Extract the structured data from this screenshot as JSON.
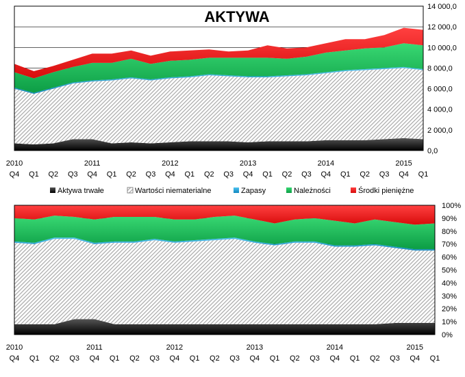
{
  "chart_data": [
    {
      "type": "area",
      "stacked": true,
      "title": "AKTYWA",
      "x": [
        "2010 Q4",
        "Q1",
        "Q2",
        "Q3",
        "Q4",
        "Q1",
        "Q2",
        "Q3",
        "Q4",
        "Q1",
        "Q2",
        "Q3",
        "Q4",
        "Q1",
        "Q2",
        "Q3",
        "Q4",
        "Q1",
        "Q2",
        "Q3",
        "Q4",
        "Q1"
      ],
      "x_tick_labels": [
        "Q4",
        "Q1",
        "Q2",
        "Q3",
        "Q4",
        "Q1",
        "Q2",
        "Q3",
        "Q4",
        "Q1",
        "Q2",
        "Q3",
        "Q4",
        "Q1",
        "Q2",
        "Q3",
        "Q4",
        "Q1",
        "Q2",
        "Q3",
        "Q4",
        "Q1"
      ],
      "year_labels": [
        {
          "label": "2010",
          "at": 0
        },
        {
          "label": "2011",
          "at": 4
        },
        {
          "label": "2012",
          "at": 8
        },
        {
          "label": "2013",
          "at": 12
        },
        {
          "label": "2014",
          "at": 16
        },
        {
          "label": "2015",
          "at": 20
        }
      ],
      "series": [
        {
          "name": "Aktywa trwałe",
          "color": "#111111",
          "values": [
            700,
            600,
            700,
            1100,
            1100,
            700,
            800,
            700,
            800,
            900,
            900,
            900,
            800,
            900,
            900,
            900,
            1000,
            1000,
            1000,
            1100,
            1200,
            1100
          ]
        },
        {
          "name": "Wartości niematerialne",
          "color": "#bdbdbd",
          "values": [
            5300,
            4900,
            5300,
            5400,
            5600,
            6100,
            6200,
            6100,
            6200,
            6200,
            6400,
            6300,
            6300,
            6200,
            6300,
            6400,
            6500,
            6700,
            6800,
            6800,
            6800,
            6700
          ]
        },
        {
          "name": "Zapasy",
          "color": "#1ba1d9",
          "values": [
            100,
            100,
            100,
            100,
            100,
            100,
            100,
            100,
            100,
            100,
            100,
            100,
            100,
            100,
            100,
            100,
            100,
            100,
            100,
            100,
            100,
            100
          ]
        },
        {
          "name": "Należności",
          "color": "#16c25a",
          "values": [
            1500,
            1400,
            1500,
            1500,
            1700,
            1600,
            1800,
            1500,
            1600,
            1600,
            1600,
            1700,
            1800,
            1800,
            1600,
            1700,
            1900,
            1900,
            2000,
            2000,
            2300,
            2300
          ]
        },
        {
          "name": "Środki pieniężne",
          "color": "#ee1c1c",
          "values": [
            800,
            700,
            600,
            700,
            900,
            900,
            800,
            800,
            900,
            900,
            800,
            600,
            700,
            1200,
            1000,
            900,
            900,
            1100,
            900,
            1200,
            1500,
            1500
          ]
        }
      ],
      "yticks": [
        "0,0",
        "2 000,0",
        "4 000,0",
        "6 000,0",
        "8 000,0",
        "10 000,0",
        "12 000,0",
        "14 000,0"
      ],
      "ylim": [
        0,
        14000
      ],
      "legend_position": "bottom",
      "grid": true
    },
    {
      "type": "area",
      "stacked": true,
      "percent": true,
      "title": "",
      "x": [
        "2010 Q4",
        "Q1",
        "Q2",
        "Q3",
        "Q4",
        "Q1",
        "Q2",
        "Q3",
        "Q4",
        "Q1",
        "Q2",
        "Q3",
        "Q4",
        "Q1",
        "Q2",
        "Q3",
        "Q4",
        "Q1",
        "Q2",
        "Q3",
        "Q4",
        "Q1"
      ],
      "x_tick_labels": [
        "Q4",
        "Q1",
        "Q2",
        "Q3",
        "Q4",
        "Q1",
        "Q2",
        "Q3",
        "Q4",
        "Q1",
        "Q2",
        "Q3",
        "Q4",
        "Q1",
        "Q2",
        "Q3",
        "Q4",
        "Q1",
        "Q2",
        "Q3",
        "Q4",
        "Q1"
      ],
      "year_labels": [
        {
          "label": "2010",
          "at": 0
        },
        {
          "label": "2011",
          "at": 4
        },
        {
          "label": "2012",
          "at": 8
        },
        {
          "label": "2013",
          "at": 12
        },
        {
          "label": "2014",
          "at": 16
        },
        {
          "label": "2015",
          "at": 20
        }
      ],
      "series": [
        {
          "name": "Aktywa trwałe",
          "color": "#111111",
          "values": [
            8,
            8,
            8,
            12,
            12,
            8,
            8,
            8,
            8,
            8,
            8,
            8,
            8,
            8,
            8,
            8,
            8,
            8,
            8,
            9,
            9,
            9
          ]
        },
        {
          "name": "Wartości niematerialne",
          "color": "#bdbdbd",
          "values": [
            63,
            62,
            66,
            62,
            58,
            63,
            63,
            65,
            63,
            64,
            65,
            66,
            63,
            61,
            63,
            63,
            60,
            60,
            61,
            58,
            56,
            56
          ]
        },
        {
          "name": "Zapasy",
          "color": "#1ba1d9",
          "values": [
            1,
            1,
            1,
            1,
            1,
            1,
            1,
            1,
            1,
            1,
            1,
            1,
            1,
            1,
            1,
            1,
            1,
            1,
            1,
            1,
            1,
            1
          ]
        },
        {
          "name": "Należności",
          "color": "#16c25a",
          "values": [
            18,
            18,
            17,
            16,
            18,
            19,
            19,
            17,
            17,
            16,
            17,
            17,
            17,
            16,
            17,
            18,
            19,
            17,
            19,
            19,
            19,
            20
          ]
        },
        {
          "name": "Środki pieniężne",
          "color": "#ee1c1c",
          "values": [
            10,
            11,
            8,
            9,
            11,
            9,
            9,
            9,
            11,
            11,
            9,
            8,
            11,
            14,
            11,
            10,
            12,
            14,
            11,
            13,
            15,
            14
          ]
        }
      ],
      "yticks": [
        "0%",
        "10%",
        "20%",
        "30%",
        "40%",
        "50%",
        "60%",
        "70%",
        "80%",
        "90%",
        "100%"
      ],
      "ylim": [
        0,
        100
      ],
      "grid": true
    }
  ],
  "legend": {
    "items": [
      {
        "name": "Aktywa trwałe",
        "icon": "black-square-icon"
      },
      {
        "name": "Wartości niematerialne",
        "icon": "hatched-square-icon"
      },
      {
        "name": "Zapasy",
        "icon": "blue-square-icon"
      },
      {
        "name": "Należności",
        "icon": "green-square-icon"
      },
      {
        "name": "Środki pieniężne",
        "icon": "red-square-icon"
      }
    ]
  }
}
